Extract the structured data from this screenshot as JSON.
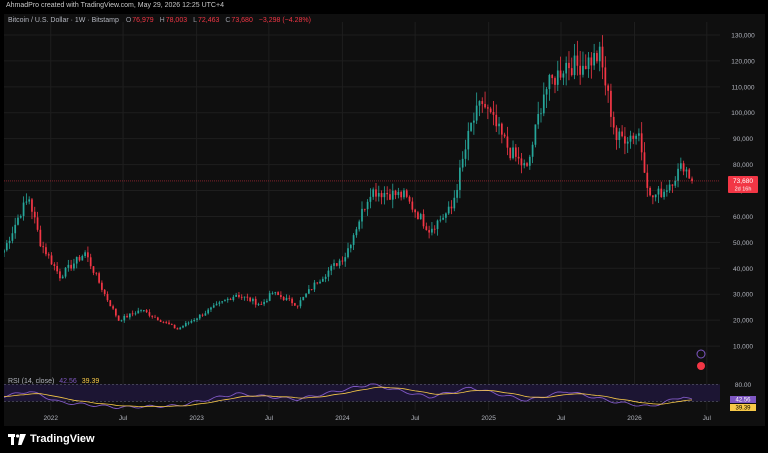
{
  "header": {
    "credit": "AhmadPro created with TradingView.com, May 29, 2026 12:25 UTC+4"
  },
  "legend": {
    "title": "Bitcoin / U.S. Dollar · 1W · Bitstamp",
    "o_label": "O",
    "o_value": "76,979",
    "h_label": "H",
    "h_value": "78,003",
    "l_label": "L",
    "l_value": "72,463",
    "c_label": "C",
    "c_value": "73,680",
    "change": "−3,298 (−4.28%)"
  },
  "price_tag": {
    "value": "73,680",
    "countdown": "2d 16h"
  },
  "rsi": {
    "label": "RSI (14, close)",
    "value1": "42.56",
    "value2": "39.39",
    "levels": [
      80,
      40
    ],
    "axis_label": "80.00"
  },
  "brand": {
    "name": "TradingView"
  },
  "colors": {
    "up": "#26a69a",
    "down": "#f23645",
    "rsi": "#7e57c2",
    "rsi_ma": "#f7c948",
    "background": "#0f0f0f",
    "grid": "#1e1e1e"
  },
  "icons": [
    "tradingview-logo-icon",
    "lightning-event-icon",
    "earnings-flag-icon"
  ],
  "chart_data": {
    "type": "candlestick",
    "title": "Bitcoin / U.S. Dollar · 1W · Bitstamp",
    "y_ticks": [
      10000,
      20000,
      30000,
      40000,
      50000,
      60000,
      70000,
      80000,
      90000,
      100000,
      110000,
      120000,
      130000
    ],
    "y_tick_labels": [
      "10,000",
      "20,000",
      "30,000",
      "40,000",
      "50,000",
      "60,000",
      "70,000",
      "80,000",
      "90,000",
      "100,000",
      "110,000",
      "120,000",
      "130,000"
    ],
    "ylim": [
      0,
      135000
    ],
    "x_tick_labels": [
      "2022",
      "Jul",
      "2023",
      "Jul",
      "2024",
      "Jul",
      "2025",
      "Jul",
      "2026",
      "Jul"
    ],
    "x_tick_dates": [
      "2022-01-01",
      "2022-07-01",
      "2023-01-01",
      "2023-07-01",
      "2024-01-01",
      "2024-07-01",
      "2025-01-01",
      "2025-07-01",
      "2026-01-01",
      "2026-07-01"
    ],
    "xlim": [
      "2021-09-06",
      "2026-08-03"
    ],
    "grid": true,
    "last_close": 73680,
    "series": [
      {
        "name": "BTCUSD",
        "price_anchors": [
          [
            "2021-09-06",
            47000
          ],
          [
            "2021-10-18",
            62000
          ],
          [
            "2021-11-08",
            67000
          ],
          [
            "2021-12-06",
            50000
          ],
          [
            "2022-01-24",
            37000
          ],
          [
            "2022-03-28",
            46000
          ],
          [
            "2022-05-16",
            30000
          ],
          [
            "2022-06-20",
            20000
          ],
          [
            "2022-08-15",
            24000
          ],
          [
            "2022-11-14",
            16500
          ],
          [
            "2023-01-23",
            23000
          ],
          [
            "2023-04-10",
            30000
          ],
          [
            "2023-06-12",
            26000
          ],
          [
            "2023-07-10",
            30500
          ],
          [
            "2023-09-11",
            26000
          ],
          [
            "2023-10-30",
            35000
          ],
          [
            "2024-01-08",
            45000
          ],
          [
            "2024-03-11",
            70000
          ],
          [
            "2024-06-03",
            68000
          ],
          [
            "2024-08-05",
            55000
          ],
          [
            "2024-09-30",
            63000
          ],
          [
            "2024-11-18",
            95000
          ],
          [
            "2024-12-16",
            104000
          ],
          [
            "2025-02-24",
            85000
          ],
          [
            "2025-04-07",
            78000
          ],
          [
            "2025-05-19",
            108000
          ],
          [
            "2025-07-14",
            119000
          ],
          [
            "2025-08-11",
            118000
          ],
          [
            "2025-10-06",
            122000
          ],
          [
            "2025-11-17",
            90000
          ],
          [
            "2026-01-12",
            92000
          ],
          [
            "2026-02-09",
            67000
          ],
          [
            "2026-03-16",
            70000
          ],
          [
            "2026-05-04",
            80000
          ],
          [
            "2026-05-25",
            73680
          ]
        ]
      },
      {
        "name": "RSI (14, close)",
        "values_anchor": [
          [
            "2021-09-06",
            52
          ],
          [
            "2021-11-08",
            64
          ],
          [
            "2022-01-24",
            38
          ],
          [
            "2022-06-20",
            26
          ],
          [
            "2022-11-14",
            30
          ],
          [
            "2023-04-10",
            58
          ],
          [
            "2023-09-11",
            45
          ],
          [
            "2024-03-11",
            80
          ],
          [
            "2024-08-05",
            50
          ],
          [
            "2024-11-18",
            72
          ],
          [
            "2025-04-07",
            42
          ],
          [
            "2025-07-14",
            64
          ],
          [
            "2025-11-17",
            38
          ],
          [
            "2026-02-09",
            28
          ],
          [
            "2026-05-04",
            52
          ],
          [
            "2026-05-25",
            42.56
          ]
        ]
      }
    ]
  }
}
